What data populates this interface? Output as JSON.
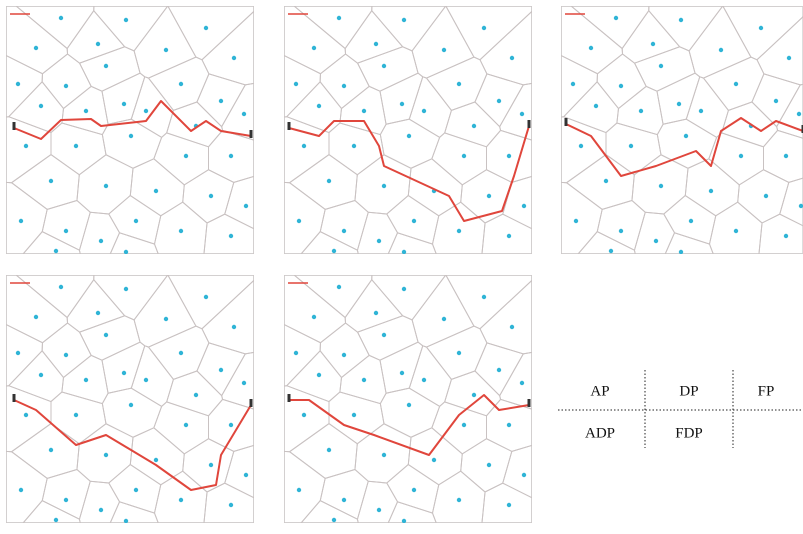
{
  "table": {
    "rows": [
      [
        "AP",
        "DP",
        "FP"
      ],
      [
        "ADP",
        "FDP"
      ]
    ]
  }
}
